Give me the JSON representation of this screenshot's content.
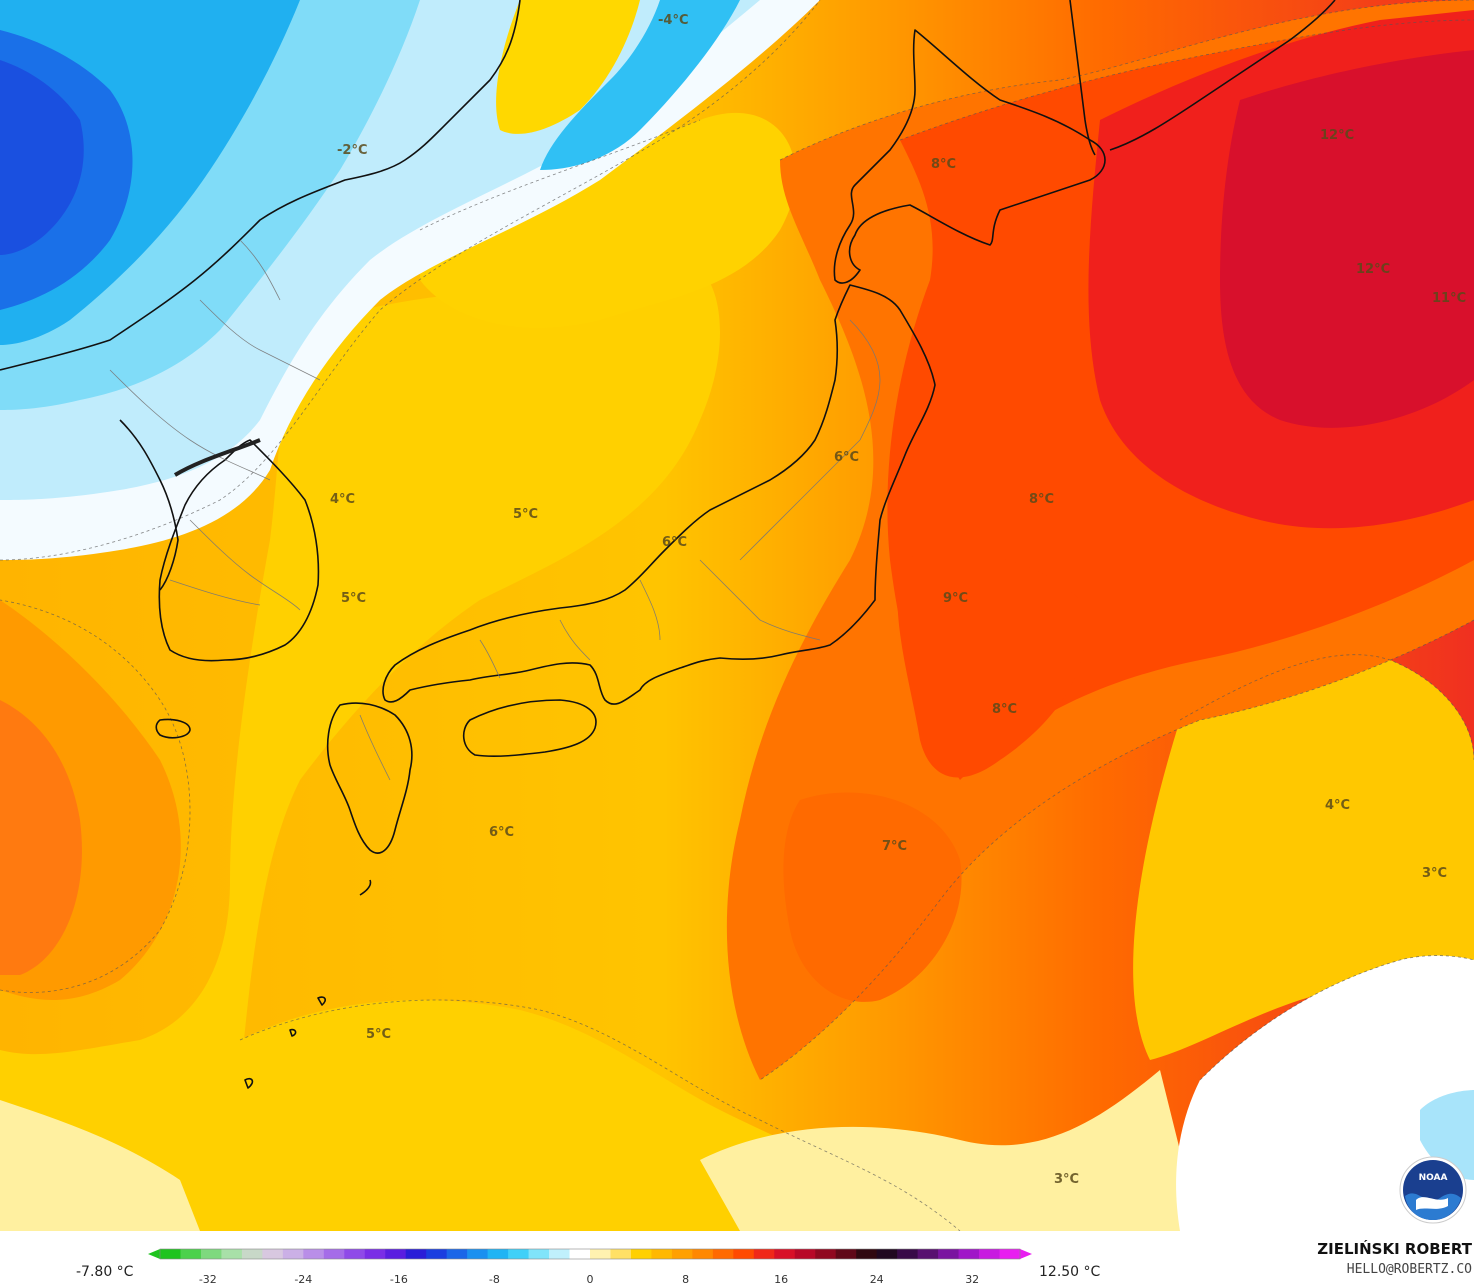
{
  "map": {
    "temperature_labels": [
      {
        "text": "-4°C"
      },
      {
        "text": "-2°C"
      },
      {
        "text": "12°C"
      },
      {
        "text": "8°C"
      },
      {
        "text": "12°C"
      },
      {
        "text": "11°C"
      },
      {
        "text": "6°C"
      },
      {
        "text": "4°C"
      },
      {
        "text": "5°C"
      },
      {
        "text": "6°C"
      },
      {
        "text": "8°C"
      },
      {
        "text": "5°C"
      },
      {
        "text": "9°C"
      },
      {
        "text": "8°C"
      },
      {
        "text": "4°C"
      },
      {
        "text": "6°C"
      },
      {
        "text": "7°C"
      },
      {
        "text": "3°C"
      },
      {
        "text": "5°C"
      },
      {
        "text": "3°C"
      }
    ],
    "logo": {
      "name": "noaa-logo",
      "text": "NOAA"
    }
  },
  "legend": {
    "min_label": "-7.80 °C",
    "max_label": "12.50 °C",
    "ticks": [
      "-32",
      "-24",
      "-16",
      "-8",
      "0",
      "8",
      "16",
      "24",
      "32"
    ],
    "tick_values": [
      -32,
      -24,
      -16,
      -8,
      0,
      8,
      16,
      24,
      32
    ],
    "scale_min": -36,
    "scale_max": 36,
    "colors": [
      "#1fc41f",
      "#4cd14c",
      "#7ed97e",
      "#a8e0a8",
      "#c8d8c8",
      "#d8c8e0",
      "#cbb0e6",
      "#b98ee8",
      "#a56ce8",
      "#8f4ae8",
      "#7a2ee6",
      "#5a1ee0",
      "#2a1ed8",
      "#1a3ee0",
      "#1a66e8",
      "#1a90f0",
      "#20b4f4",
      "#40d0f8",
      "#80e4fa",
      "#c0f0fc",
      "#ffffff",
      "#fff2b0",
      "#ffe066",
      "#ffd000",
      "#ffb800",
      "#ffa000",
      "#ff8800",
      "#ff6a00",
      "#ff4a00",
      "#f02818",
      "#d81028",
      "#b80828",
      "#900820",
      "#600818",
      "#300810",
      "#200820",
      "#380a48",
      "#581070",
      "#7a14a0",
      "#a016c8",
      "#c81ae0",
      "#e81ef0"
    ]
  },
  "credit": {
    "name": "ZIELIŃSKI ROBERT",
    "email": "HELLO@ROBERTZ.CO"
  }
}
